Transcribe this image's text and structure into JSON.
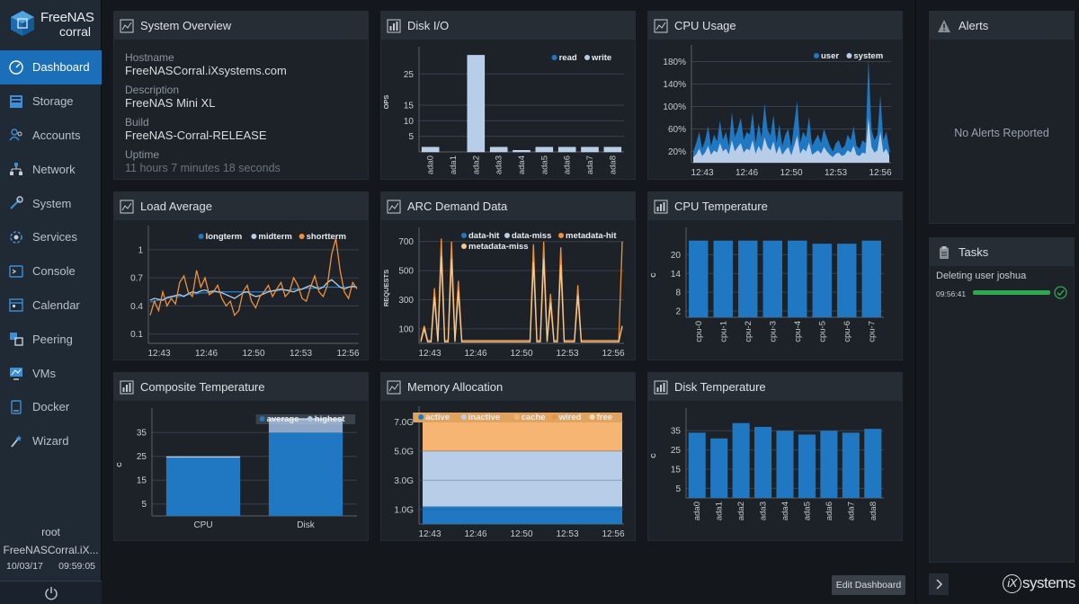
{
  "app": {
    "logo_line1": "FreeNAS",
    "logo_line2": "corral"
  },
  "sidebar": {
    "items": [
      {
        "label": "Dashboard",
        "icon": "dashboard-icon",
        "active": true
      },
      {
        "label": "Storage",
        "icon": "storage-icon"
      },
      {
        "label": "Accounts",
        "icon": "accounts-icon"
      },
      {
        "label": "Network",
        "icon": "network-icon"
      },
      {
        "label": "System",
        "icon": "system-icon"
      },
      {
        "label": "Services",
        "icon": "services-icon"
      },
      {
        "label": "Console",
        "icon": "console-icon"
      },
      {
        "label": "Calendar",
        "icon": "calendar-icon"
      },
      {
        "label": "Peering",
        "icon": "peering-icon"
      },
      {
        "label": "VMs",
        "icon": "vms-icon"
      },
      {
        "label": "Docker",
        "icon": "docker-icon"
      },
      {
        "label": "Wizard",
        "icon": "wizard-icon"
      }
    ],
    "user": "root",
    "host": "FreeNASCorral.iX...",
    "date": "10/03/17",
    "time": "09:59:05"
  },
  "colors": {
    "accent": "#1b6fb8",
    "series_dark": "#1f78c1",
    "series_light": "#b7cde8",
    "orange": "#f0903a",
    "green": "#2fa84f"
  },
  "system_overview": {
    "title": "System Overview",
    "hostname_label": "Hostname",
    "hostname": "FreeNASCorral.iXsystems.com",
    "description_label": "Description",
    "description": "FreeNAS Mini XL",
    "build_label": "Build",
    "build": "FreeNAS-Corral-RELEASE",
    "uptime_label": "Uptime",
    "uptime": "11 hours 7 minutes 18 seconds"
  },
  "alerts": {
    "title": "Alerts",
    "empty": "No Alerts Reported"
  },
  "tasks": {
    "title": "Tasks",
    "task_name": "Deleting user joshua",
    "task_time": "09:56:41",
    "progress": 1.0
  },
  "footer": {
    "edit_button": "Edit Dashboard",
    "brand_i": "iX",
    "brand": "systems"
  },
  "chart_data": [
    {
      "id": "disk-io",
      "title": "Disk I/O",
      "type": "bar",
      "ylabel": "OPS",
      "yticks": [
        5,
        10,
        15,
        25
      ],
      "ylim": [
        0,
        32
      ],
      "categories": [
        "ada0",
        "ada1",
        "ada2",
        "ada3",
        "ada4",
        "ada5",
        "ada6",
        "ada7",
        "ada8"
      ],
      "series": [
        {
          "name": "read",
          "values": [
            1.5,
            0,
            31,
            1.5,
            0.5,
            1.5,
            1.5,
            1.5,
            1.5
          ]
        },
        {
          "name": "write",
          "values": [
            0,
            0,
            0,
            0,
            0,
            0,
            0,
            0,
            0
          ]
        }
      ],
      "legend": "top-right"
    },
    {
      "id": "cpu-usage",
      "title": "CPU Usage",
      "type": "area",
      "yticks": [
        "20%",
        "60%",
        "100%",
        "140%",
        "180%"
      ],
      "ylim": [
        0,
        200
      ],
      "xticks": [
        "12:43",
        "12:46",
        "12:50",
        "12:53",
        "12:56"
      ],
      "series": [
        {
          "name": "user",
          "values": [
            20,
            35,
            55,
            25,
            40,
            65,
            30,
            50,
            38,
            75,
            40,
            55,
            30,
            90,
            45,
            60,
            80,
            40,
            55,
            50,
            90,
            35,
            70,
            45,
            105,
            60,
            48,
            85,
            35,
            68,
            30,
            50,
            60,
            28,
            70,
            110,
            35,
            55,
            45,
            82,
            30,
            40,
            50,
            35,
            60,
            45,
            30,
            20,
            35,
            40,
            25,
            30,
            50,
            40,
            65,
            30,
            25,
            40,
            35,
            185,
            60,
            40,
            50,
            120,
            40,
            55,
            25
          ]
        },
        {
          "name": "system",
          "values": [
            10,
            15,
            25,
            12,
            18,
            30,
            14,
            22,
            18,
            35,
            20,
            25,
            15,
            40,
            20,
            28,
            35,
            18,
            25,
            22,
            40,
            16,
            30,
            20,
            45,
            28,
            22,
            38,
            16,
            30,
            14,
            22,
            28,
            13,
            30,
            48,
            16,
            25,
            20,
            36,
            14,
            18,
            22,
            16,
            28,
            20,
            14,
            10,
            16,
            18,
            12,
            14,
            22,
            18,
            30,
            14,
            12,
            18,
            16,
            80,
            28,
            18,
            22,
            55,
            18,
            25,
            12
          ]
        }
      ],
      "legend": "top-right"
    },
    {
      "id": "load-average",
      "title": "Load Average",
      "type": "line",
      "yticks": [
        0.1,
        0.4,
        0.7,
        1.0
      ],
      "ylim": [
        0,
        1.2
      ],
      "xticks": [
        "12:43",
        "12:46",
        "12:50",
        "12:53",
        "12:56"
      ],
      "series": [
        {
          "name": "longterm",
          "values": [
            0.44,
            0.45,
            0.46,
            0.47,
            0.48,
            0.49,
            0.5,
            0.5,
            0.51,
            0.52,
            0.53,
            0.53,
            0.54,
            0.54,
            0.54,
            0.55,
            0.55,
            0.55,
            0.55,
            0.55,
            0.55,
            0.55,
            0.55,
            0.55,
            0.55,
            0.55,
            0.55,
            0.55,
            0.56,
            0.56,
            0.56,
            0.57,
            0.57,
            0.57,
            0.58,
            0.58,
            0.58,
            0.59,
            0.59,
            0.59,
            0.6,
            0.6,
            0.6,
            0.6,
            0.6,
            0.6,
            0.6,
            0.6,
            0.6,
            0.6
          ]
        },
        {
          "name": "midterm",
          "values": [
            0.46,
            0.48,
            0.47,
            0.46,
            0.49,
            0.5,
            0.51,
            0.52,
            0.5,
            0.53,
            0.55,
            0.54,
            0.56,
            0.57,
            0.55,
            0.56,
            0.55,
            0.54,
            0.52,
            0.5,
            0.48,
            0.51,
            0.54,
            0.55,
            0.52,
            0.5,
            0.51,
            0.53,
            0.55,
            0.56,
            0.57,
            0.58,
            0.57,
            0.56,
            0.55,
            0.57,
            0.58,
            0.6,
            0.62,
            0.6,
            0.58,
            0.6,
            0.65,
            0.68,
            0.64,
            0.6,
            0.58,
            0.6,
            0.61,
            0.6
          ]
        },
        {
          "name": "shortterm",
          "values": [
            0.3,
            0.45,
            0.35,
            0.55,
            0.4,
            0.48,
            0.42,
            0.65,
            0.72,
            0.55,
            0.5,
            0.78,
            0.6,
            0.7,
            0.52,
            0.55,
            0.62,
            0.48,
            0.4,
            0.45,
            0.3,
            0.35,
            0.55,
            0.62,
            0.45,
            0.38,
            0.5,
            0.55,
            0.62,
            0.5,
            0.58,
            0.65,
            0.5,
            0.55,
            0.7,
            0.62,
            0.48,
            0.45,
            0.6,
            0.72,
            0.55,
            0.5,
            0.62,
            0.95,
            1.12,
            0.78,
            0.55,
            0.48,
            0.65,
            0.58
          ]
        }
      ],
      "legend": "top-right"
    },
    {
      "id": "arc-demand",
      "title": "ARC Demand Data",
      "type": "line",
      "ylabel": "REQUESTS",
      "yticks": [
        100,
        300,
        500,
        700
      ],
      "ylim": [
        0,
        760
      ],
      "xticks": [
        "12:43",
        "12:46",
        "12:50",
        "12:53",
        "12:56"
      ],
      "series": [
        {
          "name": "data-hit",
          "values": [
            0,
            0,
            0,
            0,
            0,
            0,
            0,
            0,
            0,
            0,
            0,
            0,
            0,
            0,
            0,
            0,
            0,
            0,
            0,
            0,
            0,
            0,
            0,
            0,
            0,
            0,
            0,
            0,
            0,
            0,
            0,
            0,
            0,
            0,
            0,
            0,
            0,
            0,
            0,
            0,
            0,
            0,
            0,
            0,
            0,
            0,
            0,
            0,
            0,
            0,
            0,
            0,
            0,
            0,
            0,
            0,
            0,
            0,
            0,
            0
          ]
        },
        {
          "name": "data-miss",
          "values": [
            0,
            0,
            0,
            0,
            0,
            0,
            0,
            0,
            0,
            0,
            0,
            0,
            0,
            0,
            0,
            0,
            0,
            0,
            0,
            0,
            0,
            0,
            0,
            0,
            0,
            0,
            0,
            0,
            0,
            0,
            0,
            0,
            0,
            0,
            0,
            0,
            0,
            0,
            0,
            0,
            0,
            0,
            0,
            0,
            0,
            0,
            0,
            0,
            0,
            0,
            0,
            0,
            0,
            0,
            0,
            0,
            0,
            0,
            0,
            0
          ]
        },
        {
          "name": "metadata-hit",
          "values": [
            20,
            120,
            20,
            20,
            380,
            20,
            720,
            20,
            20,
            700,
            20,
            430,
            20,
            20,
            20,
            20,
            20,
            20,
            20,
            20,
            20,
            20,
            20,
            20,
            20,
            20,
            20,
            20,
            20,
            20,
            20,
            20,
            20,
            680,
            20,
            20,
            700,
            20,
            340,
            20,
            20,
            660,
            20,
            20,
            20,
            20,
            400,
            20,
            20,
            20,
            20,
            20,
            20,
            20,
            20,
            20,
            20,
            20,
            20,
            700
          ]
        },
        {
          "name": "metadata-miss",
          "values": [
            10,
            100,
            10,
            10,
            320,
            10,
            600,
            10,
            10,
            580,
            10,
            360,
            10,
            10,
            10,
            10,
            10,
            10,
            10,
            10,
            10,
            10,
            10,
            10,
            10,
            10,
            10,
            10,
            10,
            10,
            10,
            10,
            10,
            560,
            10,
            10,
            580,
            10,
            280,
            10,
            10,
            540,
            10,
            10,
            10,
            10,
            330,
            10,
            10,
            10,
            10,
            10,
            10,
            10,
            10,
            10,
            10,
            10,
            10,
            120
          ]
        }
      ],
      "legend": "top-right"
    },
    {
      "id": "cpu-temperature",
      "title": "CPU Temperature",
      "type": "bar",
      "ylabel": "C",
      "yticks": [
        2,
        8,
        14,
        20
      ],
      "ylim": [
        0,
        27
      ],
      "categories": [
        "cpu-0",
        "cpu-1",
        "cpu-2",
        "cpu-3",
        "cpu-4",
        "cpu-5",
        "cpu-6",
        "cpu-7"
      ],
      "values": [
        24.5,
        24.5,
        24.5,
        24.5,
        24.5,
        23.5,
        23.5,
        24.5
      ]
    },
    {
      "id": "composite-temperature",
      "title": "Composite Temperature",
      "type": "bar",
      "ylabel": "C",
      "yticks": [
        5,
        15,
        25,
        35
      ],
      "ylim": [
        0,
        43
      ],
      "categories": [
        "CPU",
        "Disk"
      ],
      "series": [
        {
          "name": "average",
          "values": [
            24.5,
            35
          ]
        },
        {
          "name": "highest",
          "values": [
            25,
            41
          ]
        }
      ],
      "legend": "top-right"
    },
    {
      "id": "memory-allocation",
      "title": "Memory Allocation",
      "type": "area",
      "yticks": [
        "1.0G",
        "3.0G",
        "5.0G",
        "7.0G"
      ],
      "ylim": [
        0,
        7.7
      ],
      "xticks": [
        "12:43",
        "12:46",
        "12:50",
        "12:53",
        "12:56"
      ],
      "series": [
        {
          "name": "active",
          "values": [
            1.2,
            1.2,
            1.2,
            1.2,
            1.2
          ]
        },
        {
          "name": "inactive",
          "values": [
            3.8,
            3.8,
            3.8,
            3.8,
            3.8
          ]
        },
        {
          "name": "cache",
          "values": [
            2.2,
            2.2,
            2.2,
            2.2,
            2.2
          ]
        },
        {
          "name": "wired",
          "values": [
            0.1,
            0.1,
            0.1,
            0.1,
            0.1
          ]
        },
        {
          "name": "free",
          "values": [
            0.05,
            0.05,
            0.05,
            0.05,
            0.05
          ]
        }
      ],
      "legend": "top-right"
    },
    {
      "id": "disk-temperature",
      "title": "Disk Temperature",
      "type": "bar",
      "ylabel": "C",
      "yticks": [
        5,
        15,
        25,
        35
      ],
      "ylim": [
        0,
        44
      ],
      "categories": [
        "ada0",
        "ada1",
        "ada2",
        "ada3",
        "ada4",
        "ada5",
        "ada6",
        "ada7",
        "ada8"
      ],
      "values": [
        34,
        31,
        39,
        37,
        35,
        33,
        35,
        34,
        36
      ]
    }
  ]
}
